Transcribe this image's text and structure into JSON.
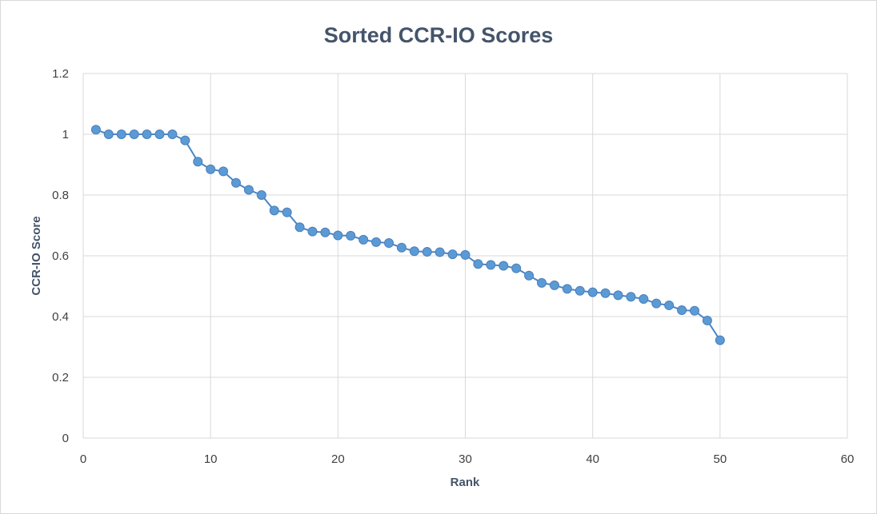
{
  "chart_data": {
    "type": "scatter",
    "title": "Sorted CCR-IO Scores",
    "xlabel": "Rank",
    "ylabel": "CCR-IO Score",
    "xlim": [
      0,
      60
    ],
    "ylim": [
      0,
      1.2
    ],
    "x_ticks": [
      0,
      10,
      20,
      30,
      40,
      50,
      60
    ],
    "y_ticks": [
      0,
      0.2,
      0.4,
      0.6,
      0.8,
      1,
      1.2
    ],
    "x_tick_labels": [
      "0",
      "10",
      "20",
      "30",
      "40",
      "50",
      "60"
    ],
    "y_tick_labels": [
      "0",
      "0.2",
      "0.4",
      "0.6",
      "0.8",
      "1",
      "1.2"
    ],
    "grid": true,
    "legend": "none",
    "series_color": "#5b9bd5",
    "line_color": "#4a86c5",
    "series": [
      {
        "x": [
          1,
          2,
          3,
          4,
          5,
          6,
          7,
          8,
          9,
          10,
          11,
          12,
          13,
          14,
          15,
          16,
          17,
          18,
          19,
          20,
          21,
          22,
          23,
          24,
          25,
          26,
          27,
          28,
          29,
          30,
          31,
          32,
          33,
          34,
          35,
          36,
          37,
          38,
          39,
          40,
          41,
          42,
          43,
          44,
          45,
          46,
          47,
          48,
          49,
          50
        ],
        "y": [
          1.015,
          1.0,
          1.0,
          1.0,
          1.0,
          1.0,
          1.0,
          0.98,
          0.91,
          0.885,
          0.878,
          0.84,
          0.817,
          0.8,
          0.749,
          0.743,
          0.694,
          0.68,
          0.677,
          0.667,
          0.666,
          0.653,
          0.645,
          0.642,
          0.627,
          0.615,
          0.613,
          0.612,
          0.605,
          0.603,
          0.573,
          0.57,
          0.567,
          0.559,
          0.535,
          0.511,
          0.503,
          0.491,
          0.485,
          0.48,
          0.477,
          0.47,
          0.465,
          0.458,
          0.443,
          0.437,
          0.421,
          0.419,
          0.387,
          0.322
        ]
      }
    ]
  }
}
